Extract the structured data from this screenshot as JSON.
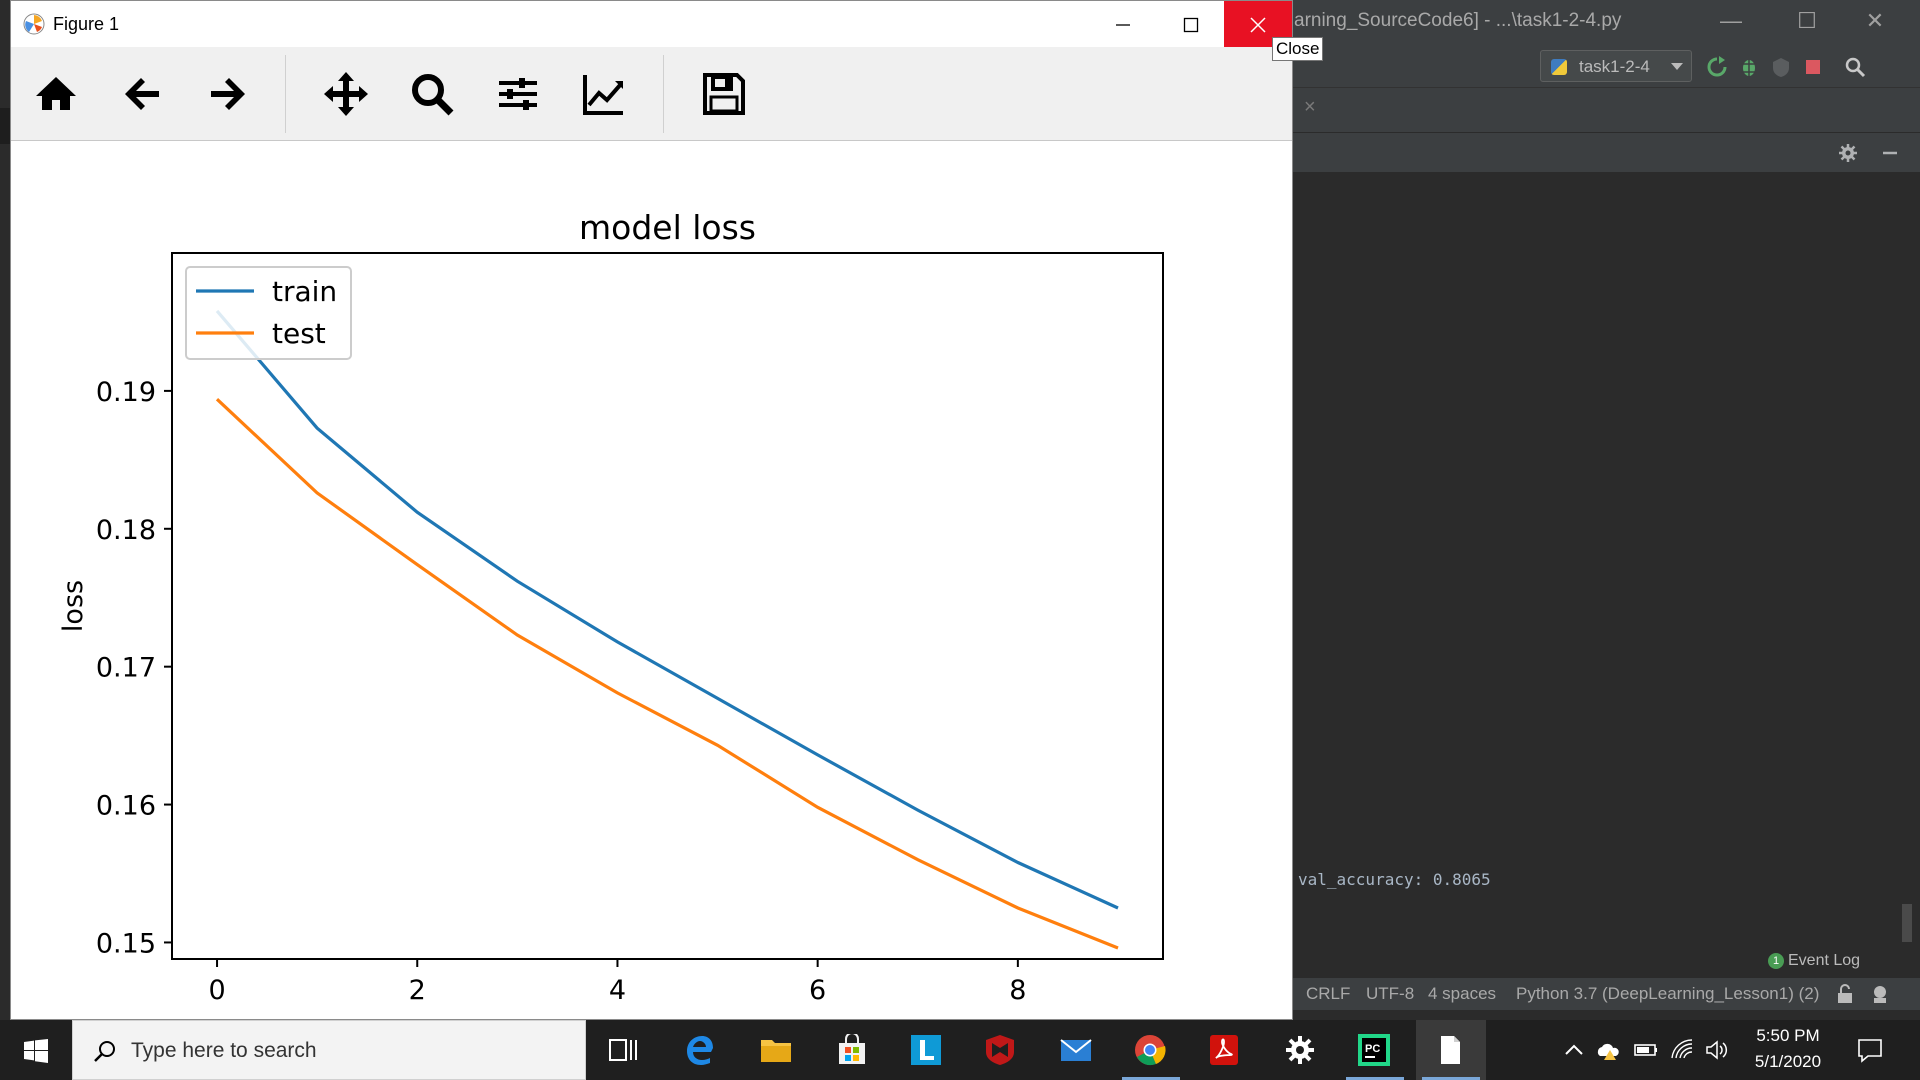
{
  "ide": {
    "title": "arning_SourceCode6] - ...\\task1-2-4.py",
    "run_config": "task1-2-4",
    "console_line": "val_accuracy: 0.8065",
    "event_log": "Event Log",
    "event_count": "1",
    "status": {
      "line_sep": "CRLF",
      "encoding": "UTF-8",
      "indent": "4 spaces",
      "interpreter": "Python 3.7 (DeepLearning_Lesson1) (2)"
    }
  },
  "figure": {
    "window_title": "Figure 1",
    "close_tooltip": "Close",
    "toolbar": [
      "home-icon",
      "back-arrow-icon",
      "forward-arrow-icon",
      "pan-icon",
      "zoom-icon",
      "configure-subplots-icon",
      "edit-axis-icon",
      "save-icon"
    ]
  },
  "chart_data": {
    "type": "line",
    "title": "model loss",
    "xlabel": "",
    "ylabel": "loss",
    "x": [
      0,
      1,
      2,
      3,
      4,
      5,
      6,
      7,
      8,
      9
    ],
    "xticks": [
      0,
      2,
      4,
      6,
      8
    ],
    "yticks": [
      0.15,
      0.16,
      0.17,
      0.18,
      0.19
    ],
    "xlim": [
      -0.45,
      9.45
    ],
    "ylim": [
      0.1488,
      0.2
    ],
    "legend_position": "top-left",
    "grid": false,
    "series": [
      {
        "name": "train",
        "color": "#1f77b4",
        "values": [
          0.1958,
          0.1873,
          0.1812,
          0.1762,
          0.1718,
          0.1677,
          0.1636,
          0.1596,
          0.1558,
          0.1525
        ]
      },
      {
        "name": "test",
        "color": "#ff7f0e",
        "values": [
          0.1894,
          0.1826,
          0.1774,
          0.1723,
          0.1681,
          0.1643,
          0.1598,
          0.156,
          0.1525,
          0.1496
        ]
      }
    ]
  },
  "taskbar": {
    "search_placeholder": "Type here to search",
    "time": "5:50 PM",
    "date": "5/1/2020"
  }
}
